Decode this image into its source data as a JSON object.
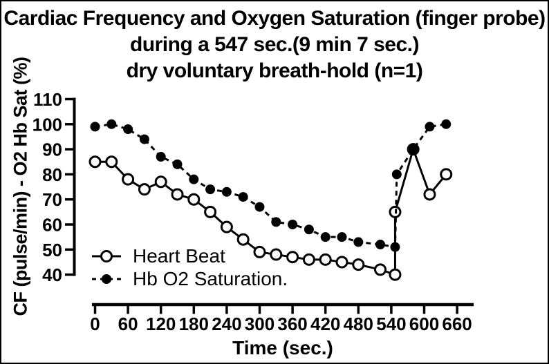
{
  "figure": {
    "title_lines": [
      "Cardiac Frequency and Oxygen Saturation (finger probe)",
      "during a 547 sec.(9 min 7 sec.)",
      "dry voluntary breath-hold (n=1)"
    ]
  },
  "chart_data": {
    "type": "line",
    "title": "Cardiac Frequency and Oxygen Saturation (finger probe) during a 547 sec.(9 min 7 sec.) dry voluntary breath-hold (n=1)",
    "xlabel": "Time (sec.)",
    "ylabel": "CF (pulse/min) - O2 Hb Sat (%)",
    "xlim": [
      0,
      660
    ],
    "ylim": [
      40,
      110
    ],
    "x_ticks": [
      0,
      60,
      120,
      180,
      240,
      300,
      360,
      420,
      480,
      540,
      600,
      660
    ],
    "y_ticks": [
      110,
      100,
      90,
      80,
      70,
      60,
      50,
      40
    ],
    "grid": false,
    "legend_position": "inside-lower-left",
    "series": [
      {
        "name": "Heart Beat",
        "marker": "open-circle",
        "line_style": "solid",
        "color": "#000000",
        "x": [
          0,
          30,
          60,
          90,
          120,
          150,
          180,
          210,
          240,
          270,
          300,
          330,
          360,
          390,
          420,
          450,
          480,
          520,
          547,
          547,
          580,
          610,
          640
        ],
        "values": [
          85,
          85,
          78,
          74,
          77,
          72,
          70,
          65,
          59,
          54,
          49,
          48,
          47,
          46,
          46,
          45,
          44,
          42,
          40,
          65,
          90,
          72,
          80
        ]
      },
      {
        "name": "Hb O2 Saturation.",
        "marker": "filled-circle",
        "line_style": "dashed",
        "color": "#000000",
        "x": [
          0,
          30,
          60,
          90,
          120,
          150,
          180,
          210,
          240,
          270,
          300,
          330,
          360,
          390,
          420,
          450,
          480,
          520,
          547,
          550,
          580,
          610,
          640
        ],
        "values": [
          99,
          100,
          98,
          94,
          87,
          84,
          78,
          74,
          73,
          71,
          67,
          61,
          60,
          58,
          55,
          55,
          53,
          52,
          51,
          80,
          90,
          99,
          100
        ]
      }
    ]
  },
  "colors": {
    "foreground": "#000000",
    "background": "#ffffff"
  }
}
